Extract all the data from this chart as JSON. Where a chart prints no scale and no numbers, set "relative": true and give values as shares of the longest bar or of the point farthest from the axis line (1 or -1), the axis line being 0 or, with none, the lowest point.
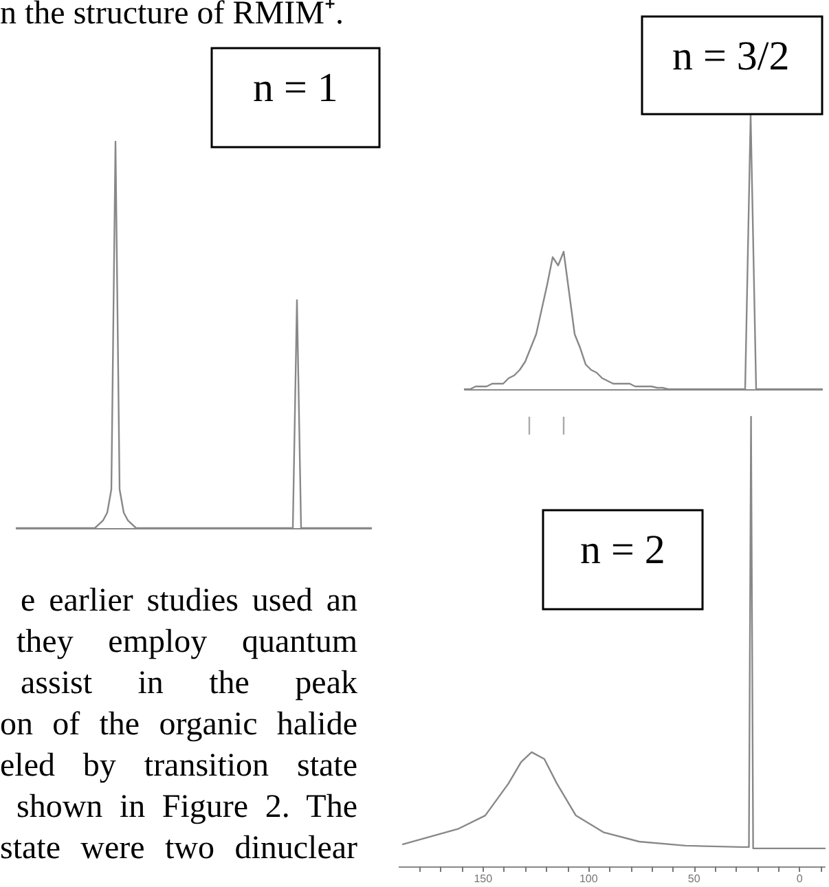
{
  "chart_data": [
    {
      "type": "other",
      "annotations": [
        "n the structure of RMIM⁺."
      ]
    },
    {
      "type": "line",
      "relative": true,
      "title": "n = 1",
      "color": "#888888",
      "categories": [
        null,
        null,
        null,
        null,
        null,
        null,
        null,
        null,
        null,
        null,
        null,
        null,
        null,
        null,
        null,
        null,
        null,
        null,
        null,
        null,
        null,
        null,
        null,
        null,
        null,
        null,
        null,
        null,
        null,
        null,
        null,
        null,
        null,
        null,
        null,
        null,
        null,
        null,
        null,
        null,
        null,
        null,
        null,
        null,
        null,
        null,
        null,
        null,
        null,
        null,
        null,
        null,
        null,
        null,
        null,
        null,
        null,
        null,
        null,
        null,
        null,
        null,
        null,
        null,
        null,
        null,
        null,
        null,
        null,
        null,
        null,
        null,
        null,
        null,
        null,
        null,
        null,
        null,
        null,
        null,
        null,
        null,
        null,
        null,
        null,
        null,
        null
      ],
      "values": [
        0,
        0,
        0,
        0,
        0,
        0,
        0,
        0,
        0,
        0,
        0,
        0,
        0,
        0,
        0,
        0,
        0,
        0,
        0,
        0,
        0.01,
        0.02,
        0.04,
        0.1,
        1,
        0.1,
        0.04,
        0.02,
        0.01,
        0,
        0,
        0,
        0,
        0,
        0,
        0,
        0,
        0,
        0,
        0,
        0,
        0,
        0,
        0,
        0,
        0,
        0,
        0,
        0,
        0,
        0,
        0,
        0,
        0,
        0,
        0,
        0,
        0,
        0,
        0,
        0,
        0,
        0,
        0,
        0,
        0,
        0,
        0,
        0.59,
        0,
        0,
        0,
        0,
        0,
        0,
        0,
        0,
        0,
        0,
        0,
        0,
        0,
        0,
        0,
        0,
        0,
        0
      ]
    },
    {
      "type": "line",
      "relative": true,
      "title": "n = 3/2",
      "color": "#888888",
      "categories": [
        null,
        null,
        null,
        null,
        null,
        null,
        null,
        null,
        null,
        null,
        null,
        null,
        null,
        null,
        null,
        null,
        null,
        null,
        null,
        null,
        null,
        null,
        null,
        null,
        null,
        null,
        null,
        null,
        null,
        null,
        null,
        null,
        null,
        null,
        null,
        null,
        null,
        null,
        null,
        null,
        null,
        null,
        null,
        null,
        null,
        null,
        null,
        null,
        null,
        null,
        null,
        null,
        null,
        null,
        null,
        null,
        null,
        null,
        null,
        null,
        null,
        null,
        null,
        null,
        null,
        null
      ],
      "values": [
        0,
        0,
        0.01,
        0.01,
        0.01,
        0.02,
        0.02,
        0.02,
        0.04,
        0.05,
        0.07,
        0.1,
        0.15,
        0.2,
        0.29,
        0.38,
        0.48,
        0.45,
        0.5,
        0.35,
        0.2,
        0.15,
        0.09,
        0.07,
        0.06,
        0.04,
        0.03,
        0.02,
        0.02,
        0.02,
        0.02,
        0.01,
        0.01,
        0.01,
        0.01,
        0.005,
        0.005,
        0,
        0,
        0,
        0,
        0,
        0,
        0,
        0,
        0,
        0,
        0,
        0,
        0,
        0,
        0,
        1,
        0,
        0,
        0,
        0,
        0,
        0,
        0,
        0,
        0,
        0,
        0,
        0,
        0
      ]
    },
    {
      "type": "other",
      "annotations": [
        "e earlier studies used an",
        "they employ quantum",
        "assist in the peak",
        "on of the organic halide",
        "eled by transition state",
        "shown in Figure 2. The",
        "state were two dinuclear"
      ]
    },
    {
      "type": "line",
      "relative": true,
      "title": "n = 2",
      "color": "#888888",
      "xlim": [
        190,
        -12
      ],
      "xticks": [
        {
          "value": 180,
          "label": null
        },
        {
          "value": 170,
          "label": null
        },
        {
          "value": 160,
          "label": null
        },
        150,
        {
          "value": 140,
          "label": null
        },
        {
          "value": 130,
          "label": null
        },
        {
          "value": 120,
          "label": null
        },
        {
          "value": 110,
          "label": null
        },
        100,
        {
          "value": 90,
          "label": null
        },
        {
          "value": 80,
          "label": null
        },
        {
          "value": 70,
          "label": null
        },
        {
          "value": 60,
          "label": null
        },
        50,
        {
          "value": 40,
          "label": null
        },
        {
          "value": 30,
          "label": null
        },
        {
          "value": 20,
          "label": null
        },
        {
          "value": 10,
          "label": null
        },
        0,
        {
          "value": -10,
          "label": null
        }
      ],
      "x": [
        188,
        162,
        149,
        138,
        132,
        127,
        121,
        115,
        106,
        93,
        76,
        54,
        28,
        24,
        23,
        22,
        15,
        -5,
        -12
      ],
      "values": [
        0.049,
        0.083,
        0.113,
        0.184,
        0.232,
        0.254,
        0.239,
        0.184,
        0.113,
        0.076,
        0.055,
        0.046,
        0.043,
        0.043,
        1,
        0.04,
        0.04,
        0.04,
        0.04
      ]
    }
  ]
}
